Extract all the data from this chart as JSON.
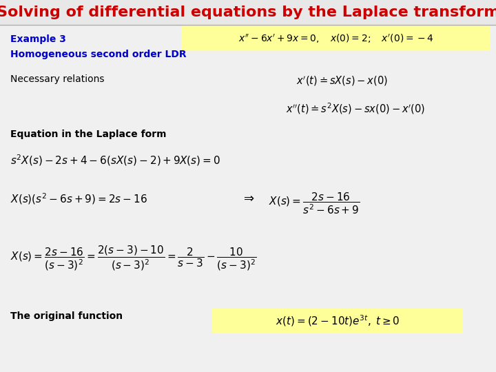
{
  "title": "Solving of differential equations by the Laplace transform",
  "title_color": "#CC0000",
  "title_fontsize": 16,
  "bg_color": "#F0F0F0",
  "example_label": "Example 3",
  "example_sublabel": "Homogeneous second order LDR",
  "label_color": "#0000CC",
  "text_color": "#000000",
  "highlight_color": "#FFFF99",
  "necessary_label": "Necessary relations",
  "equation_label": "Equation in the Laplace form",
  "original_label": "The original function",
  "eq_ode": "$x'' - 6x' + 9x = 0, \\quad x(0) = 2; \\quad x'(0) = -4$",
  "eq_rel1": "$x'(t) \\doteq sX(s) - x(0)$",
  "eq_rel2": "$x''(t) \\doteq s^{2}X(s) - sx(0) - x'(0)$",
  "eq_laplace1": "$s^{2}X(s) - 2s + 4 - 6(sX(s) - 2) + 9X(s) = 0$",
  "eq_laplace2a": "$X(s)(s^{2} - 6s + 9) = 2s - 16$",
  "eq_laplace2b": "$X(s) = \\dfrac{2s - 16}{s^{2} - 6s + 9}$",
  "eq_arrow": "$\\Rightarrow$",
  "eq_partial": "$X(s) = \\dfrac{2s - 16}{(s-3)^{2}} = \\dfrac{2(s-3) - 10}{(s-3)^{2}} = \\dfrac{2}{s-3} - \\dfrac{10}{(s-3)^{2}}$",
  "eq_original": "$x(t) = (2 - 10t)e^{3t}, \\; t \\geq 0$"
}
